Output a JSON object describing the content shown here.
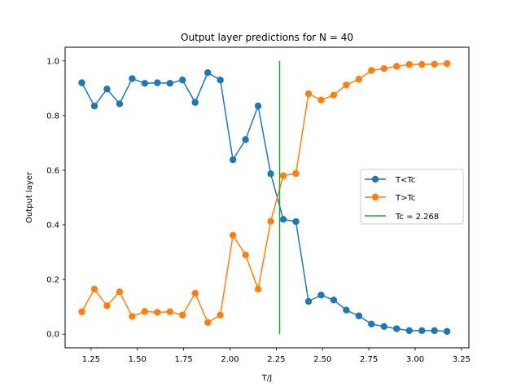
{
  "chart_data": {
    "type": "line",
    "title": "Output layer predictions for N = 40",
    "xlabel": "T/J",
    "ylabel": "Output layer",
    "xlim": [
      1.11,
      3.29
    ],
    "ylim": [
      -0.05,
      1.05
    ],
    "xticks": [
      1.25,
      1.5,
      1.75,
      2.0,
      2.25,
      2.5,
      2.75,
      3.0,
      3.25
    ],
    "xtick_labels": [
      "1.25",
      "1.50",
      "1.75",
      "2.00",
      "2.25",
      "2.50",
      "2.75",
      "3.00",
      "3.25"
    ],
    "yticks": [
      0.0,
      0.2,
      0.4,
      0.6,
      0.8,
      1.0
    ],
    "ytick_labels": [
      "0.0",
      "0.2",
      "0.4",
      "0.6",
      "0.8",
      "1.0"
    ],
    "grid": false,
    "legend_position": "center-right",
    "x": [
      1.2,
      1.268,
      1.336,
      1.404,
      1.472,
      1.54,
      1.608,
      1.676,
      1.744,
      1.812,
      1.88,
      1.948,
      2.016,
      2.084,
      2.152,
      2.22,
      2.288,
      2.356,
      2.424,
      2.492,
      2.56,
      2.628,
      2.696,
      2.764,
      2.832,
      2.9,
      2.968,
      3.036,
      3.104,
      3.172
    ],
    "series": [
      {
        "name": "T<Tc",
        "color": "#1f77b4",
        "marker": "circle",
        "values": [
          0.92,
          0.835,
          0.897,
          0.843,
          0.935,
          0.918,
          0.92,
          0.918,
          0.93,
          0.848,
          0.957,
          0.93,
          0.638,
          0.712,
          0.835,
          0.587,
          0.42,
          0.412,
          0.12,
          0.143,
          0.125,
          0.088,
          0.067,
          0.037,
          0.028,
          0.02,
          0.013,
          0.013,
          0.013,
          0.01
        ]
      },
      {
        "name": "T>Tc",
        "color": "#ff7f0e",
        "marker": "circle",
        "values": [
          0.082,
          0.165,
          0.104,
          0.155,
          0.065,
          0.083,
          0.08,
          0.082,
          0.07,
          0.15,
          0.043,
          0.07,
          0.362,
          0.29,
          0.165,
          0.413,
          0.58,
          0.588,
          0.88,
          0.857,
          0.875,
          0.912,
          0.933,
          0.965,
          0.972,
          0.98,
          0.987,
          0.987,
          0.988,
          0.99
        ]
      }
    ],
    "vline": {
      "name": "Tc = 2.268",
      "x": 2.268,
      "ymin": 0.0,
      "ymax": 1.0,
      "color": "#2ca02c"
    }
  }
}
